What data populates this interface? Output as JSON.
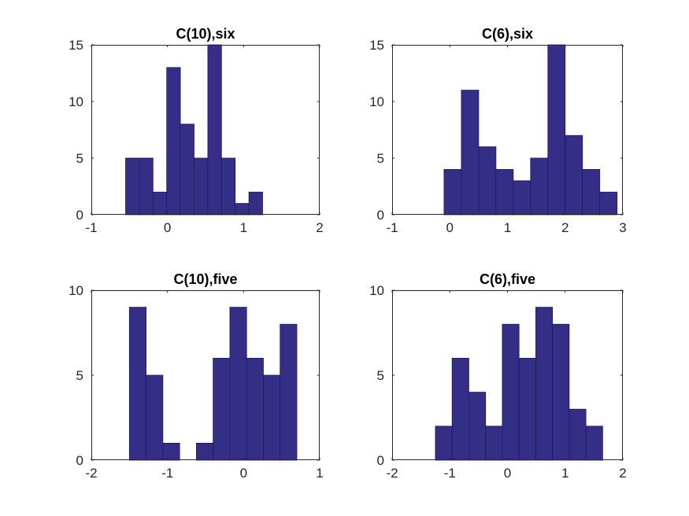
{
  "figure": {
    "background": "#ffffff"
  },
  "style": {
    "bar_fill": "#352e87",
    "bar_edge": "#1f1a55",
    "axis_color": "#262626"
  },
  "chart_data": [
    {
      "type": "bar",
      "title": "C(10),six",
      "xlabel": "",
      "ylabel": "",
      "xlim": [
        -1,
        2
      ],
      "ylim": [
        0,
        15
      ],
      "xticks": [
        -1,
        0,
        1,
        2
      ],
      "yticks": [
        0,
        5,
        10,
        15
      ],
      "bin_edges": [
        -0.55,
        -0.37,
        -0.19,
        -0.01,
        0.17,
        0.35,
        0.53,
        0.71,
        0.89,
        1.07,
        1.25
      ],
      "values": [
        5,
        5,
        2,
        13,
        8,
        5,
        15,
        5,
        1,
        2
      ],
      "grid": false
    },
    {
      "type": "bar",
      "title": "C(6),six",
      "xlabel": "",
      "ylabel": "",
      "xlim": [
        -1,
        3
      ],
      "ylim": [
        0,
        15
      ],
      "xticks": [
        -1,
        0,
        1,
        2,
        3
      ],
      "yticks": [
        0,
        5,
        10,
        15
      ],
      "bin_edges": [
        -0.1,
        0.2,
        0.5,
        0.8,
        1.1,
        1.4,
        1.7,
        2.0,
        2.3,
        2.6,
        2.9
      ],
      "values": [
        4,
        11,
        6,
        4,
        3,
        5,
        15,
        7,
        4,
        2
      ],
      "grid": false
    },
    {
      "type": "bar",
      "title": "C(10),five",
      "xlabel": "",
      "ylabel": "",
      "xlim": [
        -2,
        1
      ],
      "ylim": [
        0,
        10
      ],
      "xticks": [
        -2,
        -1,
        0,
        1
      ],
      "yticks": [
        0,
        5,
        10
      ],
      "bin_edges": [
        -1.5,
        -1.28,
        -1.06,
        -0.84,
        -0.62,
        -0.4,
        -0.18,
        0.04,
        0.26,
        0.48,
        0.7
      ],
      "values": [
        9,
        5,
        1,
        0,
        1,
        6,
        9,
        6,
        5,
        8
      ],
      "grid": false
    },
    {
      "type": "bar",
      "title": "C(6),five",
      "xlabel": "",
      "ylabel": "",
      "xlim": [
        -2,
        2
      ],
      "ylim": [
        0,
        10
      ],
      "xticks": [
        -2,
        -1,
        0,
        1,
        2
      ],
      "yticks": [
        0,
        5,
        10
      ],
      "bin_edges": [
        -1.25,
        -0.96,
        -0.67,
        -0.38,
        -0.09,
        0.2,
        0.49,
        0.78,
        1.07,
        1.36,
        1.65
      ],
      "values": [
        2,
        6,
        4,
        2,
        8,
        6,
        9,
        8,
        3,
        2
      ],
      "grid": false
    }
  ]
}
